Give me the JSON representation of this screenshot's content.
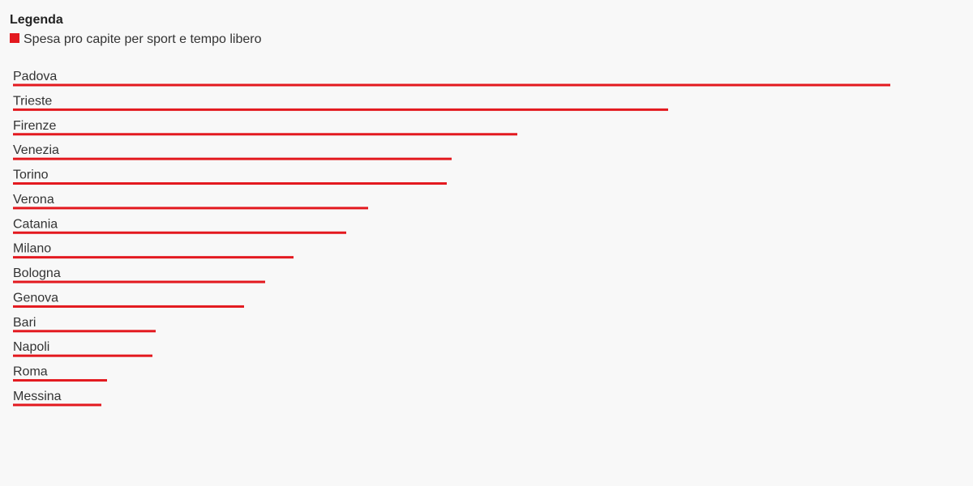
{
  "chart_data": {
    "type": "bar",
    "orientation": "horizontal",
    "legend_title": "Legenda",
    "categories": [
      "Padova",
      "Trieste",
      "Firenze",
      "Venezia",
      "Torino",
      "Verona",
      "Catania",
      "Milano",
      "Bologna",
      "Genova",
      "Bari",
      "Napoli",
      "Roma",
      "Messina"
    ],
    "series": [
      {
        "name": "Spesa pro capite per sport e tempo libero",
        "color": "#e3191f",
        "values": [
          1082,
          808,
          622,
          541,
          535,
          438,
          411,
          346,
          311,
          285,
          176,
          172,
          116,
          109
        ]
      }
    ]
  }
}
